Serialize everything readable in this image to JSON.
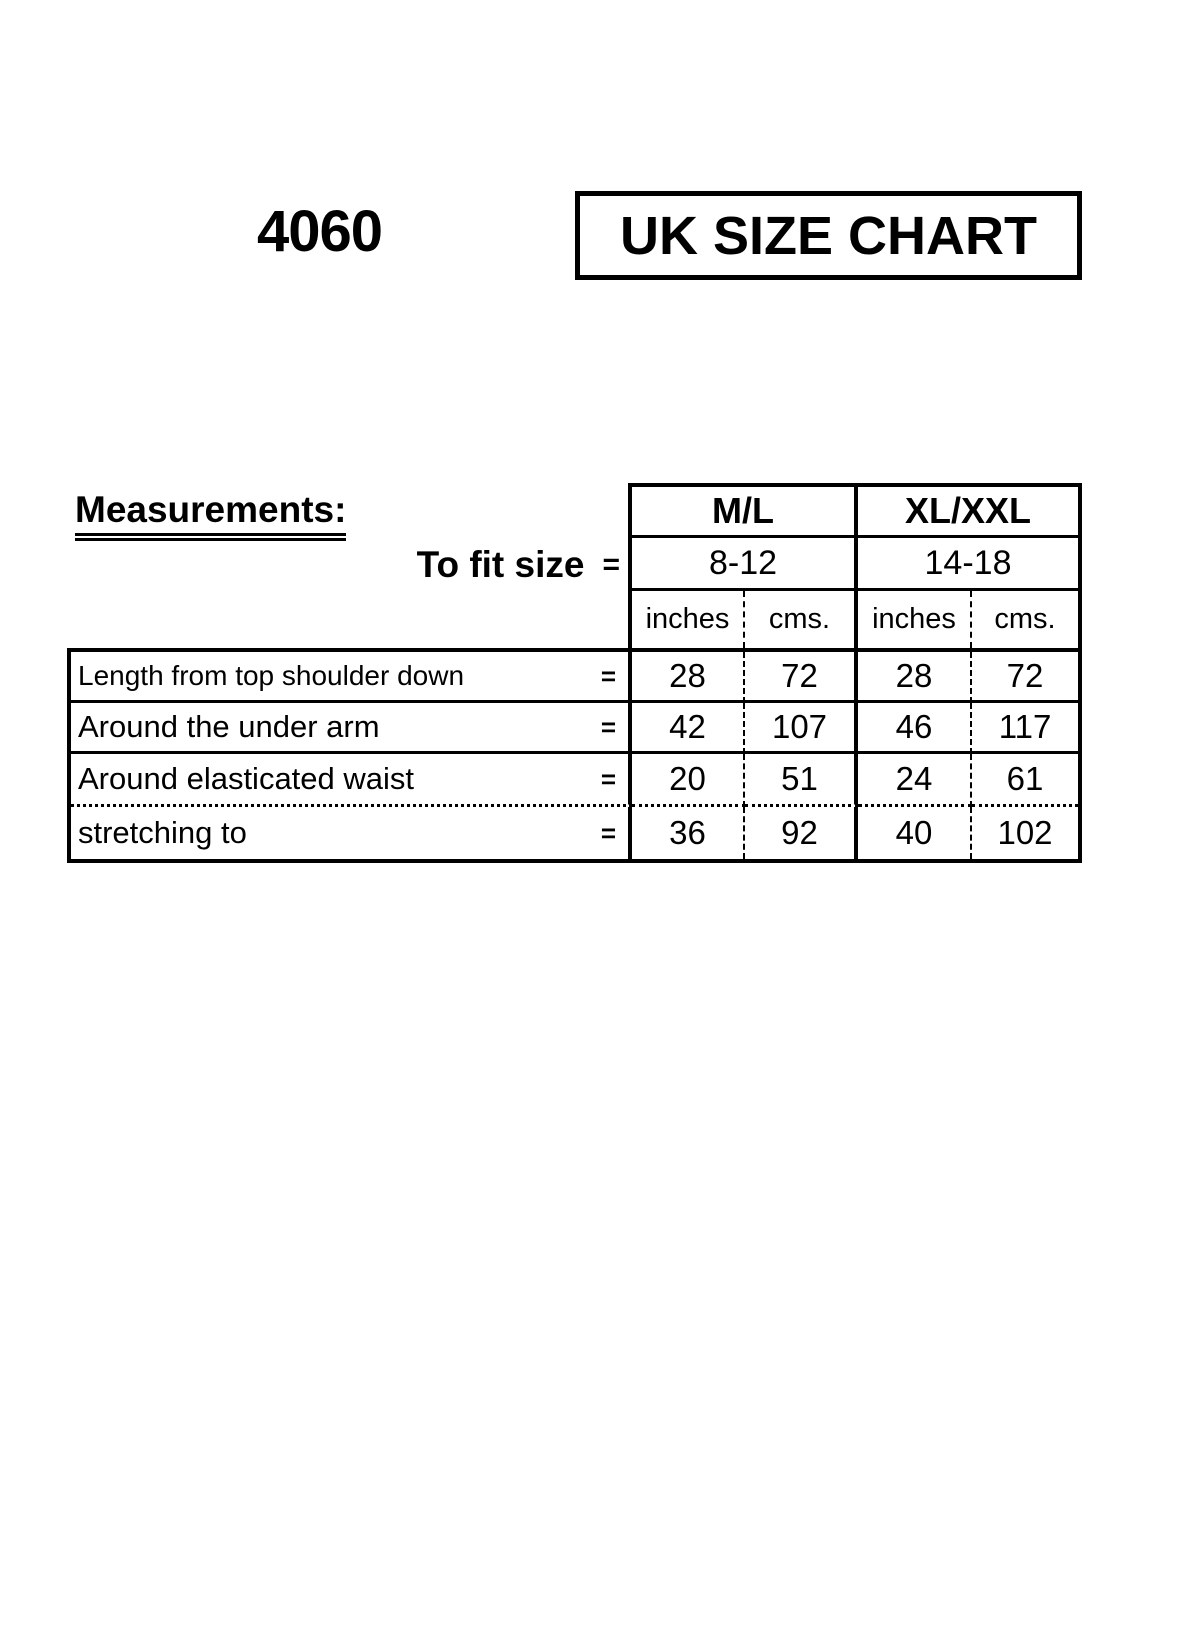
{
  "document": {
    "style_number": "4060",
    "title": "UK SIZE CHART"
  },
  "table": {
    "heading": "Measurements:",
    "to_fit_label": "To fit size",
    "equals_sign": "=",
    "columns": [
      {
        "size": "M/L",
        "to_fit": "8-12"
      },
      {
        "size": "XL/XXL",
        "to_fit": "14-18"
      }
    ],
    "unit_headers": [
      "inches",
      "cms.",
      "inches",
      "cms."
    ],
    "rows": [
      {
        "label": "Length from top shoulder down",
        "values": [
          "28",
          "72",
          "28",
          "72"
        ]
      },
      {
        "label": "Around the under arm",
        "values": [
          "42",
          "107",
          "46",
          "117"
        ]
      },
      {
        "label": "Around elasticated waist",
        "values": [
          "20",
          "51",
          "24",
          "61"
        ]
      },
      {
        "label": "stretching to",
        "values": [
          "36",
          "92",
          "40",
          "102"
        ]
      }
    ]
  }
}
